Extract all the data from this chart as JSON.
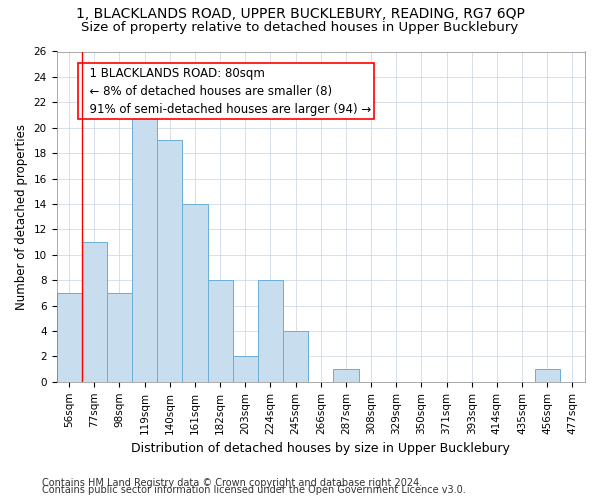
{
  "title_line1": "1, BLACKLANDS ROAD, UPPER BUCKLEBURY, READING, RG7 6QP",
  "title_line2": "Size of property relative to detached houses in Upper Bucklebury",
  "xlabel": "Distribution of detached houses by size in Upper Bucklebury",
  "ylabel": "Number of detached properties",
  "footnote1": "Contains HM Land Registry data © Crown copyright and database right 2024.",
  "footnote2": "Contains public sector information licensed under the Open Government Licence v3.0.",
  "bin_labels": [
    "56sqm",
    "77sqm",
    "98sqm",
    "119sqm",
    "140sqm",
    "161sqm",
    "182sqm",
    "203sqm",
    "224sqm",
    "245sqm",
    "266sqm",
    "287sqm",
    "308sqm",
    "329sqm",
    "350sqm",
    "371sqm",
    "393sqm",
    "414sqm",
    "435sqm",
    "456sqm",
    "477sqm"
  ],
  "values": [
    7,
    11,
    7,
    22,
    19,
    14,
    8,
    2,
    8,
    4,
    0,
    1,
    0,
    0,
    0,
    0,
    0,
    0,
    0,
    1,
    0
  ],
  "bar_color": "#c8dded",
  "bar_edge_color": "#6aaed6",
  "red_line_x": 0.5,
  "annotation_box_text": "  1 BLACKLANDS ROAD: 80sqm\n  ← 8% of detached houses are smaller (8)\n  91% of semi-detached houses are larger (94) →",
  "ylim": [
    0,
    26
  ],
  "yticks": [
    0,
    2,
    4,
    6,
    8,
    10,
    12,
    14,
    16,
    18,
    20,
    22,
    24,
    26
  ],
  "grid_color": "#c8d4e0",
  "background_color": "#ffffff",
  "title_fontsize": 10,
  "subtitle_fontsize": 9.5,
  "tick_fontsize": 7.5,
  "ylabel_fontsize": 8.5,
  "xlabel_fontsize": 9,
  "footnote_fontsize": 7
}
